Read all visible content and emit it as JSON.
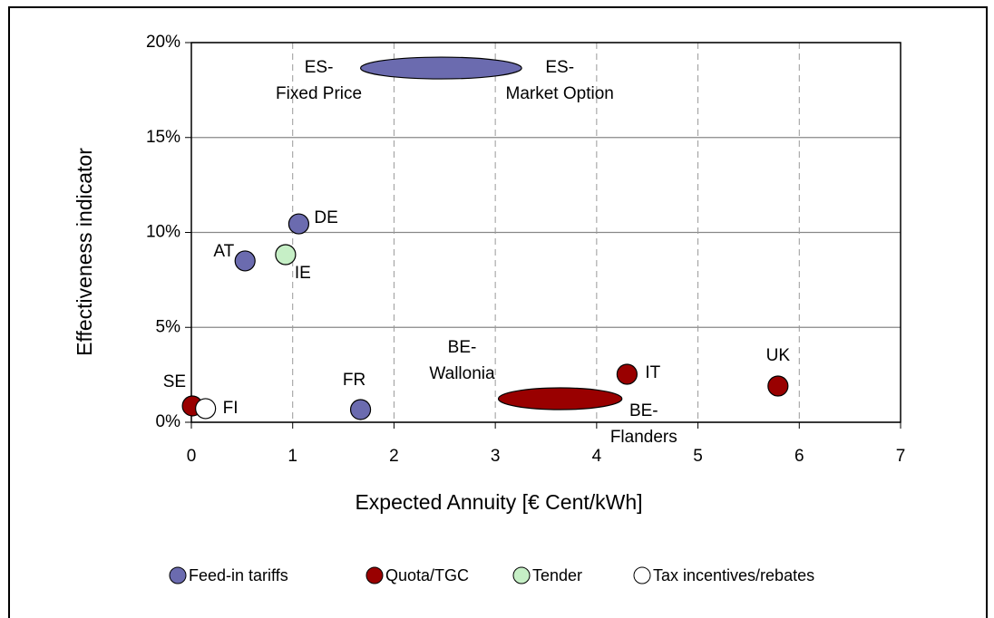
{
  "chart_data": {
    "type": "scatter",
    "xlabel": "Expected Annuity [€ Cent/kWh]",
    "ylabel": "Effectiveness indicator",
    "xlim": [
      0,
      7
    ],
    "xticks": [
      0,
      1,
      2,
      3,
      4,
      5,
      6,
      7
    ],
    "ylim": [
      0,
      20
    ],
    "yticks": [
      {
        "value": 0,
        "label": "0%"
      },
      {
        "value": 5,
        "label": "5%"
      },
      {
        "value": 10,
        "label": "10%"
      },
      {
        "value": 15,
        "label": "15%"
      },
      {
        "value": 20,
        "label": "20%"
      }
    ],
    "grid": true,
    "legend": "bottom",
    "series": [
      {
        "name": "Feed-in tariffs",
        "color": "#6b6baf",
        "points": [
          {
            "label": "AT",
            "x": 0.53,
            "y": 8.5
          },
          {
            "label": "DE",
            "x": 1.06,
            "y": 10.45
          },
          {
            "label": "FR",
            "x": 1.67,
            "y": 0.67
          },
          {
            "labels": [
              "ES-\nFixed Price",
              "ES-\nMarket Option"
            ],
            "x": [
              1.67,
              3.26
            ],
            "y": 18.66
          }
        ]
      },
      {
        "name": "Quota/TGC",
        "color": "#990000",
        "points": [
          {
            "label": "SE",
            "x": 0.01,
            "y": 0.86
          },
          {
            "label": "IT",
            "x": 4.3,
            "y": 2.53
          },
          {
            "label": "UK",
            "x": 5.79,
            "y": 1.91
          },
          {
            "labels": [
              "BE-\nWallonia",
              "BE-\nFlanders"
            ],
            "x": [
              3.03,
              4.25
            ],
            "y": 1.24
          }
        ]
      },
      {
        "name": "Tender",
        "color": "#c6efc6",
        "points": [
          {
            "label": "IE",
            "x": 0.93,
            "y": 8.83
          }
        ]
      },
      {
        "name": "Tax incentives/rebates",
        "color": "#ffffff",
        "points": [
          {
            "label": "FI",
            "x": 0.14,
            "y": 0.72
          }
        ]
      }
    ]
  }
}
